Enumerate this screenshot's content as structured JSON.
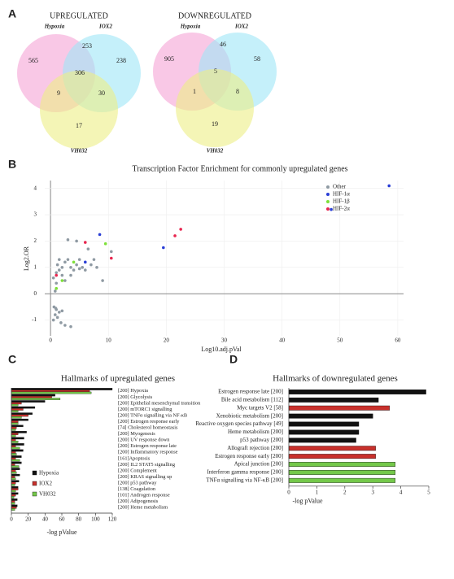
{
  "panel_labels": [
    "A",
    "B",
    "C",
    "D"
  ],
  "chart_data": [
    {
      "type": "venn",
      "title": "UPREGULATED",
      "sets": [
        {
          "name": "Hypoxia",
          "color": "#f5a3d6"
        },
        {
          "name": "IOX2",
          "color": "#9fe6f6"
        },
        {
          "name": "VH032",
          "color": "#ecef85"
        }
      ],
      "values": [
        565,
        238,
        17,
        253,
        9,
        30,
        306
      ]
    },
    {
      "type": "venn",
      "title": "DOWNREGULATED",
      "sets": [
        {
          "name": "Hypoxia",
          "color": "#f5a3d6"
        },
        {
          "name": "IOX2",
          "color": "#9fe6f6"
        },
        {
          "name": "VH032",
          "color": "#ecef85"
        }
      ],
      "values": [
        905,
        58,
        19,
        46,
        1,
        8,
        5
      ]
    },
    {
      "type": "scatter",
      "title": "Transcription Factor Enrichment for commonly upregulated genes",
      "x_label": "Log10.adj.pVal",
      "y_label": "Log2.OR",
      "xlim": [
        -1,
        61
      ],
      "ylim": [
        -1.6,
        4.3
      ],
      "xticks": [
        0,
        10,
        20,
        30,
        40,
        50,
        60
      ],
      "yticks": [
        -1,
        0,
        1,
        2,
        3,
        4
      ],
      "grid": true,
      "series": [
        {
          "name": "Other",
          "color": "#8f9aa3",
          "x": [
            0.5,
            1,
            1.5,
            1.2,
            2,
            2.5,
            3,
            2,
            3.5,
            4,
            4.5,
            5,
            5.5,
            6,
            7,
            7.5,
            8,
            3,
            4.5,
            6.5,
            10.5,
            1,
            0.8,
            2.5,
            3.5,
            1.5,
            0.6,
            1,
            1.5,
            0.8,
            2,
            1.2,
            0.5,
            2.5,
            3.5,
            1.8,
            0.9,
            5,
            9
          ],
          "values": [
            0.6,
            0.8,
            0.9,
            1.1,
            1.0,
            1.2,
            1.3,
            0.7,
            1.0,
            0.9,
            1.1,
            1.3,
            1.0,
            0.9,
            1.1,
            1.3,
            1.0,
            2.05,
            2.0,
            1.7,
            1.6,
            0.4,
            0.1,
            0.5,
            0.7,
            1.3,
            -0.5,
            -0.6,
            -0.7,
            -0.8,
            -0.65,
            -0.9,
            -1.0,
            -1.2,
            -1.25,
            -1.1,
            -0.55,
            0.95,
            0.5
          ]
        },
        {
          "name": "HIF-1α",
          "color": "#2b3fd6",
          "x": [
            58.5,
            48.5,
            8.5,
            19.5,
            6
          ],
          "values": [
            4.1,
            3.2,
            2.25,
            1.75,
            1.2
          ]
        },
        {
          "name": "HIF-1β",
          "color": "#7ee03a",
          "x": [
            9.5,
            4,
            2,
            1
          ],
          "values": [
            1.9,
            1.2,
            0.5,
            0.2
          ]
        },
        {
          "name": "HIF-2α",
          "color": "#e8264f",
          "x": [
            22.5,
            21.5,
            6,
            10.5,
            1
          ],
          "values": [
            2.45,
            2.2,
            1.95,
            1.35,
            0.7
          ]
        }
      ]
    },
    {
      "type": "hbar",
      "title": "Hallmarks of upregulated genes",
      "x_label": "-log pValue",
      "xlim": [
        0,
        120
      ],
      "xticks": [
        0,
        20,
        40,
        60,
        80,
        100,
        120
      ],
      "categories": [
        "[200] Hypoxia",
        "[200] Glycolysis",
        "[200] Epithelial mesenchymal transition",
        "[200] mTORC1 signalling",
        "[200] TNFα signalling via NF-κB",
        "[200] Estrogen response early",
        "[74] Cholesterol homeostasis",
        "[200] Myogenesis",
        "[200] UV response down",
        "[200] Estrogen response late",
        "[200] Inflammatory response",
        "[161]Apoptosis",
        "[200] IL2 STAT5 signalling",
        "[200] Complement",
        "[200] KRAS signalling up",
        "[200] p53 pathway",
        "[138] Coagulation",
        "[101] Androgen response",
        "[200] Adipogenesis",
        "[200] Heme metabolism"
      ],
      "series": [
        {
          "name": "Hypoxia",
          "color": "#111111",
          "values": [
            120,
            52,
            40,
            28,
            25,
            20,
            14,
            18,
            15,
            15,
            14,
            12,
            12,
            10,
            10,
            9,
            8,
            8,
            7,
            7
          ]
        },
        {
          "name": "IOX2",
          "color": "#c8312c",
          "values": [
            93,
            48,
            12,
            14,
            20,
            8,
            6,
            8,
            5,
            5,
            5,
            5,
            4,
            5,
            4,
            5,
            8,
            5,
            4,
            6
          ]
        },
        {
          "name": "VH032",
          "color": "#74c84a",
          "values": [
            95,
            58,
            8,
            8,
            12,
            8,
            5,
            5,
            8,
            10,
            6,
            10,
            9,
            6,
            5,
            4,
            5,
            3,
            4,
            4
          ]
        }
      ]
    },
    {
      "type": "hbar-single",
      "title": "Hallmarks of downregulated genes",
      "x_label": "-log pValue",
      "xlim": [
        0,
        5
      ],
      "xticks": [
        0,
        1,
        2,
        3,
        4,
        5
      ],
      "categories": [
        "Estrogen response late [200]",
        "Bile acid metabolism [112]",
        "Myc targets V2 [58]",
        "Xenobiotic metabolism [200]",
        "Reactive oxygen species pathway [49]",
        "Heme metabolism [200]",
        "p53 pathway [200]",
        "Allograft rejection [200]",
        "Estrogen response early [200]",
        "Apical junction [200]",
        "Interferon gamma response [200]",
        "TNFα signalling via NF-κB [200]"
      ],
      "values": [
        4.9,
        3.2,
        3.6,
        3.0,
        2.5,
        2.5,
        2.4,
        3.1,
        3.1,
        3.8,
        3.8,
        3.8
      ],
      "colors": [
        "#111111",
        "#111111",
        "#c8312c",
        "#111111",
        "#111111",
        "#111111",
        "#111111",
        "#c8312c",
        "#c8312c",
        "#74c84a",
        "#74c84a",
        "#74c84a"
      ]
    }
  ]
}
